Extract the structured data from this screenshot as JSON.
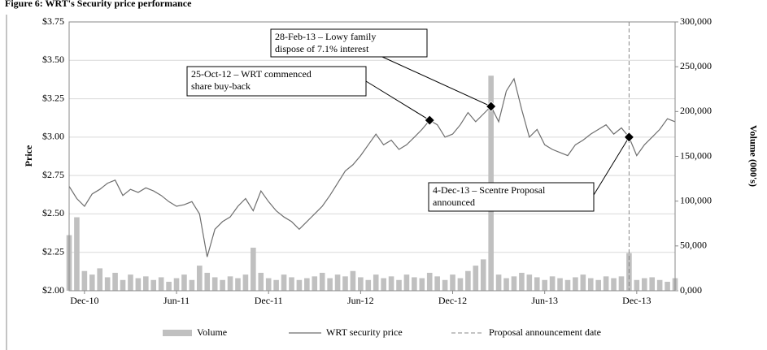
{
  "chart_data": {
    "type": "line",
    "title": "Figure 6: WRT's Security price performance",
    "ylabel": "Price",
    "y2label": "Volume (000's)",
    "categories": [
      null,
      null,
      "Dec-10",
      null,
      null,
      null,
      null,
      null,
      null,
      null,
      null,
      null,
      null,
      null,
      "Jun-11",
      null,
      null,
      null,
      null,
      null,
      null,
      null,
      null,
      null,
      null,
      null,
      "Dec-11",
      null,
      null,
      null,
      null,
      null,
      null,
      null,
      null,
      null,
      null,
      null,
      "Jun-12",
      null,
      null,
      null,
      null,
      null,
      null,
      null,
      null,
      null,
      null,
      null,
      "Dec-12",
      null,
      null,
      null,
      null,
      null,
      null,
      null,
      null,
      null,
      null,
      null,
      "Jun-13",
      null,
      null,
      null,
      null,
      null,
      null,
      null,
      null,
      null,
      null,
      null,
      "Dec-13",
      null,
      null,
      null,
      null,
      null
    ],
    "series": [
      {
        "name": "Volume",
        "type": "bar",
        "axis": "y2",
        "color": "#c0c0c0",
        "values": [
          62000,
          82000,
          22000,
          18000,
          25000,
          15000,
          20000,
          12000,
          18000,
          14000,
          16000,
          12000,
          15000,
          10000,
          14000,
          18000,
          12000,
          28000,
          20000,
          15000,
          12000,
          16000,
          14000,
          18000,
          48000,
          20000,
          14000,
          12000,
          18000,
          15000,
          12000,
          14000,
          16000,
          20000,
          14000,
          18000,
          16000,
          22000,
          15000,
          12000,
          18000,
          14000,
          16000,
          12000,
          18000,
          15000,
          14000,
          20000,
          16000,
          12000,
          18000,
          14000,
          22000,
          28000,
          35000,
          240000,
          18000,
          14000,
          16000,
          20000,
          18000,
          15000,
          12000,
          16000,
          14000,
          12000,
          15000,
          18000,
          14000,
          12000,
          16000,
          14000,
          16000,
          42000,
          12000,
          14000,
          15000,
          12000,
          10000,
          14000
        ]
      },
      {
        "name": "WRT security price",
        "type": "line",
        "color": "#6e6e6e",
        "values": [
          2.68,
          2.6,
          2.55,
          2.63,
          2.66,
          2.7,
          2.72,
          2.62,
          2.66,
          2.64,
          2.67,
          2.65,
          2.62,
          2.58,
          2.55,
          2.56,
          2.58,
          2.5,
          2.22,
          2.4,
          2.45,
          2.48,
          2.55,
          2.6,
          2.52,
          2.65,
          2.58,
          2.52,
          2.48,
          2.45,
          2.4,
          2.45,
          2.5,
          2.55,
          2.62,
          2.7,
          2.78,
          2.82,
          2.88,
          2.95,
          3.02,
          2.95,
          2.98,
          2.92,
          2.95,
          3.0,
          3.05,
          3.11,
          3.08,
          3.0,
          3.02,
          3.08,
          3.16,
          3.1,
          3.15,
          3.2,
          3.1,
          3.3,
          3.38,
          3.18,
          3.0,
          3.05,
          2.95,
          2.92,
          2.9,
          2.88,
          2.95,
          2.98,
          3.02,
          3.05,
          3.08,
          3.02,
          3.06,
          3.0,
          2.88,
          2.95,
          3.0,
          3.05,
          3.12,
          3.1
        ]
      }
    ],
    "event_name": "Proposal announcement date",
    "ylim": [
      2.0,
      3.75
    ],
    "yticks": [
      {
        "value": 2.0,
        "label": "$2.00"
      },
      {
        "value": 2.25,
        "label": "$2.25"
      },
      {
        "value": 2.5,
        "label": "$2.50"
      },
      {
        "value": 2.75,
        "label": "$2.75"
      },
      {
        "value": 3.0,
        "label": "$3.00"
      },
      {
        "value": 3.25,
        "label": "$3.25"
      },
      {
        "value": 3.5,
        "label": "$3.50"
      },
      {
        "value": 3.75,
        "label": "$3.75"
      }
    ],
    "y2lim": [
      0,
      300000
    ],
    "y2ticks": [
      {
        "value": 0,
        "label": "0,000"
      },
      {
        "value": 50000,
        "label": "50,000"
      },
      {
        "value": 100000,
        "label": "100,000"
      },
      {
        "value": 150000,
        "label": "150,000"
      },
      {
        "value": 200000,
        "label": "200,000"
      },
      {
        "value": 250000,
        "label": "250,000"
      },
      {
        "value": 300000,
        "label": "300,000"
      }
    ],
    "grid": true,
    "annotations": [
      {
        "lines": [
          "25-Oct-12 – WRT commenced",
          "share buy-back"
        ],
        "value": 3.11
      },
      {
        "lines": [
          "28-Feb-13 – Lowy family",
          "dispose of 7.1% interest"
        ],
        "value": 3.2
      },
      {
        "lines": [
          "4-Dec-13 – Scentre Proposal",
          "announced"
        ],
        "value": 3.0
      }
    ]
  }
}
